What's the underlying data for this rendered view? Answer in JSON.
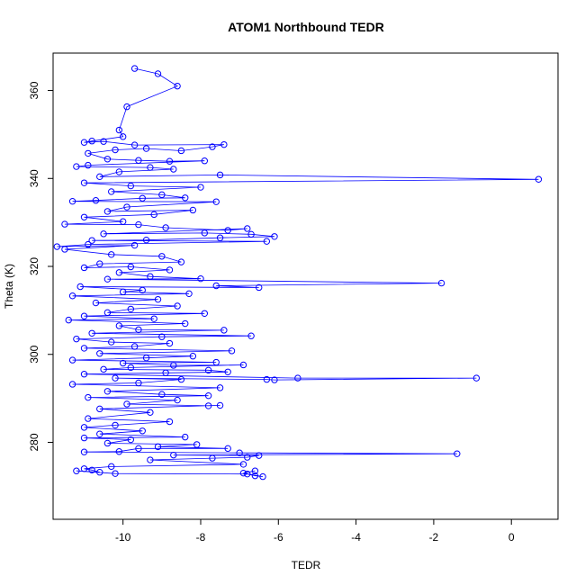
{
  "chart_data": {
    "type": "scatter",
    "title": "ATOM1 Northbound TEDR",
    "xlabel": "TEDR",
    "ylabel": "Theta (K)",
    "xlim": [
      -11.8,
      1.2
    ],
    "ylim": [
      262.5,
      368.5
    ],
    "xticks": [
      -10,
      -8,
      -6,
      -4,
      -2,
      0
    ],
    "yticks": [
      280,
      300,
      320,
      340,
      360
    ],
    "xtick_labels": [
      "-10",
      "-8",
      "-6",
      "-4",
      "-2",
      "0"
    ],
    "ytick_labels": [
      "280",
      "300",
      "320",
      "340",
      "360"
    ],
    "grid": false,
    "legend": "none",
    "colors": {
      "series": "#0000ff",
      "frame": "#000000"
    },
    "series": [
      {
        "points": [
          [
            -9.7,
            365.0
          ],
          [
            -9.1,
            363.8
          ],
          [
            -8.6,
            361.0
          ],
          [
            -9.9,
            356.3
          ],
          [
            -10.1,
            351.0
          ],
          [
            -10.0,
            349.5
          ],
          [
            -10.8,
            348.5
          ],
          [
            -11.0,
            348.2
          ],
          [
            -10.5,
            348.4
          ],
          [
            -9.7,
            347.6
          ],
          [
            -7.4,
            347.7
          ],
          [
            -7.7,
            347.2
          ],
          [
            -8.5,
            346.3
          ],
          [
            -9.4,
            346.8
          ],
          [
            -10.2,
            346.5
          ],
          [
            -10.9,
            345.7
          ],
          [
            -10.4,
            344.4
          ],
          [
            -9.6,
            344.1
          ],
          [
            -8.8,
            343.9
          ],
          [
            -7.9,
            344.0
          ],
          [
            -10.9,
            343.0
          ],
          [
            -11.2,
            342.7
          ],
          [
            -9.3,
            342.5
          ],
          [
            -8.7,
            342.1
          ],
          [
            -10.1,
            341.5
          ],
          [
            -10.6,
            340.4
          ],
          [
            -7.5,
            340.8
          ],
          [
            0.7,
            339.8
          ],
          [
            -11.0,
            339.0
          ],
          [
            -9.8,
            338.3
          ],
          [
            -8.0,
            338.0
          ],
          [
            -10.3,
            337.0
          ],
          [
            -9.0,
            336.3
          ],
          [
            -8.4,
            335.6
          ],
          [
            -9.5,
            335.5
          ],
          [
            -10.7,
            335.0
          ],
          [
            -11.3,
            334.8
          ],
          [
            -7.6,
            334.7
          ],
          [
            -9.9,
            333.5
          ],
          [
            -10.4,
            332.5
          ],
          [
            -8.2,
            332.8
          ],
          [
            -9.2,
            331.8
          ],
          [
            -11.0,
            331.2
          ],
          [
            -10.0,
            330.2
          ],
          [
            -11.5,
            329.6
          ],
          [
            -9.6,
            329.5
          ],
          [
            -8.9,
            328.8
          ],
          [
            -7.3,
            328.2
          ],
          [
            -6.8,
            328.6
          ],
          [
            -10.5,
            327.4
          ],
          [
            -7.9,
            327.6
          ],
          [
            -6.7,
            327.3
          ],
          [
            -6.1,
            326.8
          ],
          [
            -7.5,
            326.5
          ],
          [
            -9.4,
            326.0
          ],
          [
            -10.8,
            325.9
          ],
          [
            -6.3,
            325.7
          ],
          [
            -10.9,
            325.0
          ],
          [
            -11.7,
            324.5
          ],
          [
            -9.7,
            324.8
          ],
          [
            -11.5,
            323.9
          ],
          [
            -10.3,
            322.7
          ],
          [
            -9.0,
            322.3
          ],
          [
            -8.5,
            321.0
          ],
          [
            -10.6,
            320.6
          ],
          [
            -11.0,
            319.7
          ],
          [
            -9.8,
            319.9
          ],
          [
            -8.8,
            319.2
          ],
          [
            -10.1,
            318.6
          ],
          [
            -9.3,
            317.7
          ],
          [
            -8.0,
            317.2
          ],
          [
            -10.4,
            317.1
          ],
          [
            -1.8,
            316.2
          ],
          [
            -7.6,
            315.6
          ],
          [
            -6.5,
            315.2
          ],
          [
            -11.1,
            315.4
          ],
          [
            -9.5,
            314.6
          ],
          [
            -10.0,
            314.2
          ],
          [
            -8.3,
            313.8
          ],
          [
            -11.3,
            313.3
          ],
          [
            -9.1,
            312.5
          ],
          [
            -10.7,
            311.7
          ],
          [
            -8.6,
            311.0
          ],
          [
            -9.8,
            310.3
          ],
          [
            -10.4,
            309.5
          ],
          [
            -7.9,
            309.3
          ],
          [
            -11.0,
            308.7
          ],
          [
            -9.2,
            308.1
          ],
          [
            -11.4,
            307.8
          ],
          [
            -8.4,
            307.0
          ],
          [
            -10.1,
            306.5
          ],
          [
            -9.6,
            305.6
          ],
          [
            -7.4,
            305.5
          ],
          [
            -10.8,
            304.8
          ],
          [
            -6.7,
            304.2
          ],
          [
            -9.0,
            304.0
          ],
          [
            -11.2,
            303.5
          ],
          [
            -10.3,
            302.8
          ],
          [
            -8.8,
            302.5
          ],
          [
            -9.7,
            301.8
          ],
          [
            -11.0,
            301.4
          ],
          [
            -7.2,
            300.8
          ],
          [
            -10.6,
            300.2
          ],
          [
            -8.2,
            299.6
          ],
          [
            -9.4,
            299.2
          ],
          [
            -11.3,
            298.7
          ],
          [
            -7.6,
            298.2
          ],
          [
            -10.0,
            298.0
          ],
          [
            -8.7,
            297.5
          ],
          [
            -6.9,
            297.6
          ],
          [
            -9.8,
            297.0
          ],
          [
            -10.5,
            296.6
          ],
          [
            -7.8,
            296.4
          ],
          [
            -7.3,
            296.0
          ],
          [
            -8.9,
            295.8
          ],
          [
            -11.0,
            295.5
          ],
          [
            -5.5,
            294.6
          ],
          [
            -0.9,
            294.6
          ],
          [
            -6.1,
            294.2
          ],
          [
            -6.3,
            294.3
          ],
          [
            -10.2,
            294.6
          ],
          [
            -8.5,
            294.3
          ],
          [
            -9.6,
            293.5
          ],
          [
            -11.3,
            293.2
          ],
          [
            -7.5,
            292.4
          ],
          [
            -10.4,
            291.6
          ],
          [
            -9.0,
            290.9
          ],
          [
            -7.8,
            290.6
          ],
          [
            -10.9,
            290.2
          ],
          [
            -8.6,
            289.6
          ],
          [
            -9.9,
            288.7
          ],
          [
            -7.8,
            288.3
          ],
          [
            -7.5,
            288.4
          ],
          [
            -10.6,
            287.6
          ],
          [
            -9.3,
            286.8
          ],
          [
            -10.9,
            285.4
          ],
          [
            -8.8,
            284.7
          ],
          [
            -10.2,
            283.9
          ],
          [
            -11.0,
            283.4
          ],
          [
            -9.5,
            282.6
          ],
          [
            -10.6,
            281.9
          ],
          [
            -8.4,
            281.2
          ],
          [
            -11.0,
            281.0
          ],
          [
            -9.8,
            280.6
          ],
          [
            -10.4,
            279.8
          ],
          [
            -8.1,
            279.5
          ],
          [
            -9.1,
            279.0
          ],
          [
            -7.3,
            278.6
          ],
          [
            -9.6,
            278.6
          ],
          [
            -10.1,
            277.9
          ],
          [
            -11.0,
            277.8
          ],
          [
            -7.0,
            277.6
          ],
          [
            -1.4,
            277.4
          ],
          [
            -8.7,
            277.1
          ],
          [
            -6.5,
            277.0
          ],
          [
            -6.8,
            276.6
          ],
          [
            -7.7,
            276.4
          ],
          [
            -9.3,
            276.0
          ],
          [
            -6.9,
            275.0
          ],
          [
            -10.3,
            274.5
          ],
          [
            -11.0,
            274.0
          ],
          [
            -10.8,
            273.7
          ],
          [
            -10.6,
            273.2
          ],
          [
            -11.2,
            273.5
          ],
          [
            -10.2,
            272.9
          ],
          [
            -6.8,
            272.8
          ],
          [
            -6.6,
            272.4
          ],
          [
            -6.4,
            272.2
          ],
          [
            -6.9,
            273.0
          ],
          [
            -6.6,
            273.5
          ]
        ]
      }
    ]
  }
}
